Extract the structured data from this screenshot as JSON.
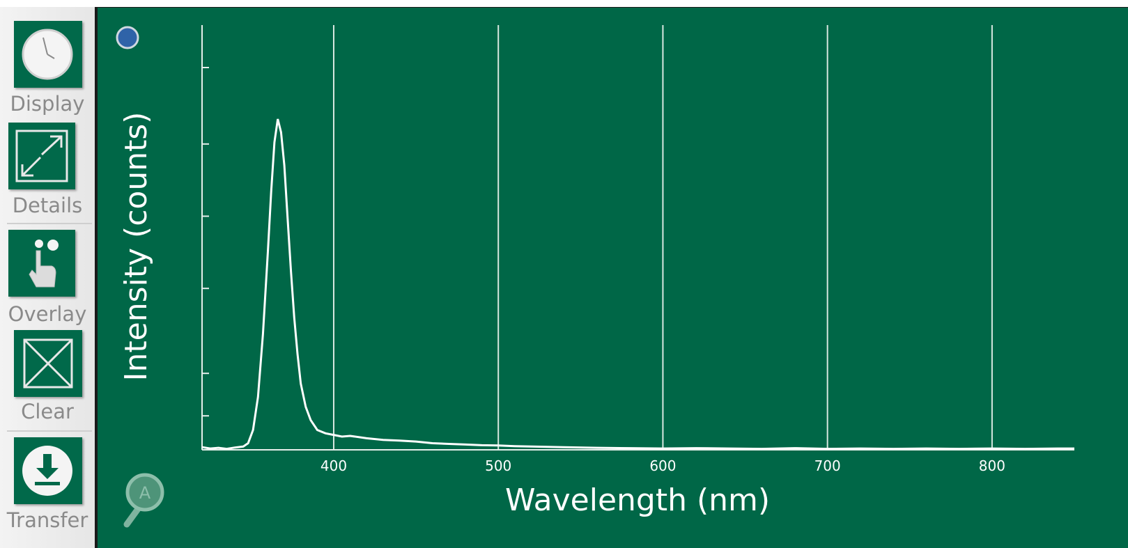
{
  "sidebar": {
    "tools": [
      {
        "label": "Display",
        "icon": "clock-icon"
      },
      {
        "label": "Details",
        "icon": "expand-icon"
      },
      {
        "label": "Overlay",
        "icon": "hand-pointer-icon"
      },
      {
        "label": "Clear",
        "icon": "clear-x-icon"
      },
      {
        "label": "Transfer",
        "icon": "download-icon"
      }
    ]
  },
  "plot": {
    "status_dot_color": "#2f63a8",
    "autoscale_icon": "magnifier-autoscale-icon",
    "autoscale_letter": "A"
  },
  "chart_data": {
    "type": "line",
    "xlabel": "Wavelength (nm)",
    "ylabel": "Intensity (counts)",
    "xlim": [
      320,
      850
    ],
    "ylim": [
      0,
      1
    ],
    "x_ticks": [
      400,
      500,
      600,
      700,
      800
    ],
    "x_tick_labels": [
      "400",
      "500",
      "600",
      "700",
      "800"
    ],
    "y_tick_values": [
      0.08,
      0.18,
      0.38,
      0.55,
      0.72,
      0.9
    ],
    "grid": "vertical",
    "line_color": "#ffffff",
    "series": [
      {
        "x": [
          320,
          325,
          330,
          335,
          340,
          345,
          348,
          351,
          354,
          357,
          360,
          362,
          364,
          366,
          368,
          370,
          372,
          374,
          376,
          378,
          380,
          383,
          386,
          390,
          395,
          400,
          405,
          410,
          420,
          430,
          440,
          450,
          460,
          470,
          480,
          490,
          500,
          510,
          520,
          530,
          540,
          560,
          580,
          600,
          620,
          640,
          660,
          680,
          700,
          720,
          740,
          760,
          780,
          800,
          820,
          840,
          850
        ],
        "y": [
          0.008,
          0.004,
          0.006,
          0.003,
          0.007,
          0.01,
          0.02,
          0.06,
          0.16,
          0.35,
          0.6,
          0.78,
          0.93,
          1.0,
          0.96,
          0.86,
          0.7,
          0.54,
          0.4,
          0.29,
          0.2,
          0.13,
          0.09,
          0.06,
          0.05,
          0.045,
          0.04,
          0.042,
          0.035,
          0.03,
          0.028,
          0.025,
          0.02,
          0.018,
          0.016,
          0.014,
          0.013,
          0.011,
          0.01,
          0.009,
          0.008,
          0.006,
          0.005,
          0.004,
          0.005,
          0.004,
          0.003,
          0.005,
          0.003,
          0.004,
          0.003,
          0.004,
          0.003,
          0.004,
          0.003,
          0.004,
          0.004
        ]
      }
    ]
  }
}
